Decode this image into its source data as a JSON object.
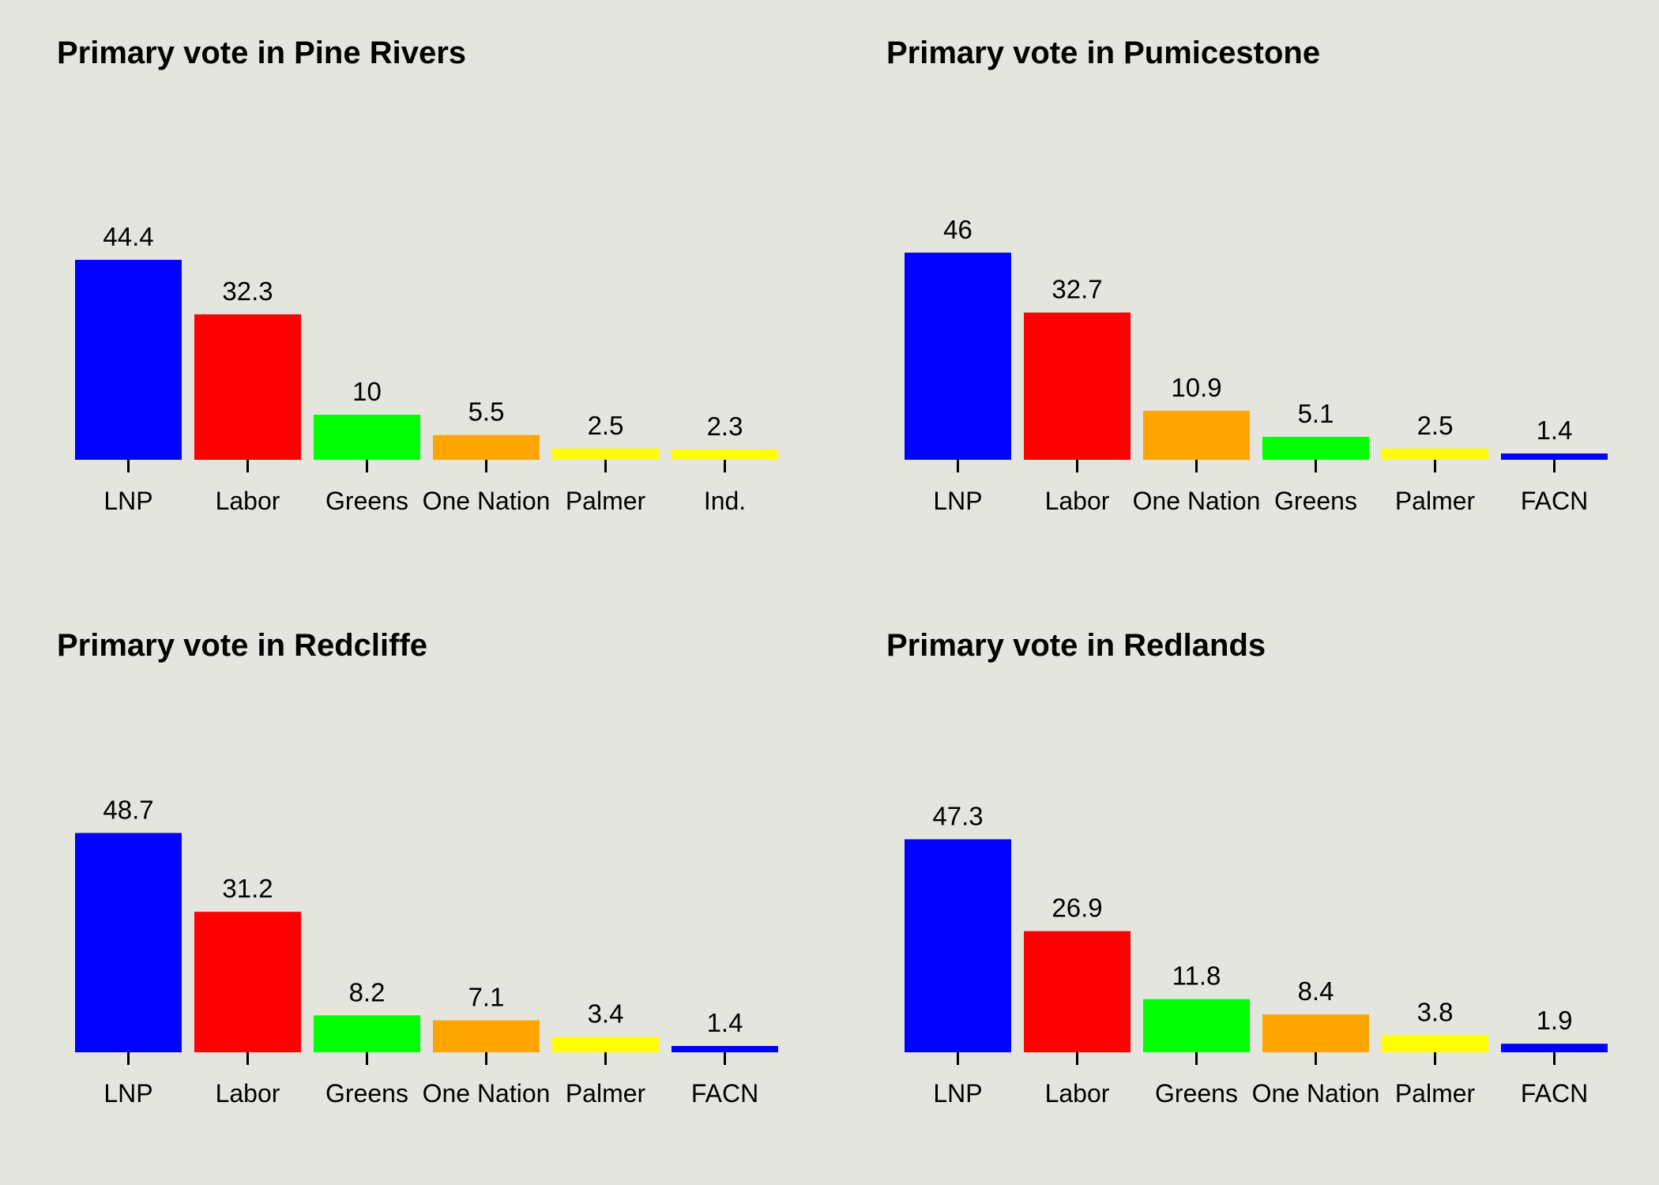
{
  "background": "#E5E5DF",
  "chart_data": [
    {
      "type": "bar",
      "title": "Primary vote in Pine Rivers",
      "categories": [
        "LNP",
        "Labor",
        "Greens",
        "One Nation",
        "Palmer",
        "Ind."
      ],
      "values": [
        44.4,
        32.3,
        10,
        5.5,
        2.5,
        2.3
      ],
      "labels": [
        "44.4",
        "32.3",
        "10",
        "5.5",
        "2.5",
        "2.3"
      ],
      "colors": [
        "#0000FF",
        "#FF0000",
        "#00FF00",
        "#FFA500",
        "#FFFF00",
        "#FFFF00"
      ],
      "ylim": [
        0,
        60
      ],
      "grid": false,
      "legend": "none"
    },
    {
      "type": "bar",
      "title": "Primary vote in Pumicestone",
      "categories": [
        "LNP",
        "Labor",
        "One Nation",
        "Greens",
        "Palmer",
        "FACN"
      ],
      "values": [
        46,
        32.7,
        10.9,
        5.1,
        2.5,
        1.4
      ],
      "labels": [
        "46",
        "32.7",
        "10.9",
        "5.1",
        "2.5",
        "1.4"
      ],
      "colors": [
        "#0000FF",
        "#FF0000",
        "#FFA500",
        "#00FF00",
        "#FFFF00",
        "#0000FF"
      ],
      "ylim": [
        0,
        60
      ],
      "grid": false,
      "legend": "none"
    },
    {
      "type": "bar",
      "title": "Primary vote in Redcliffe",
      "categories": [
        "LNP",
        "Labor",
        "Greens",
        "One Nation",
        "Palmer",
        "FACN"
      ],
      "values": [
        48.7,
        31.2,
        8.2,
        7.1,
        3.4,
        1.4
      ],
      "labels": [
        "48.7",
        "31.2",
        "8.2",
        "7.1",
        "3.4",
        "1.4"
      ],
      "colors": [
        "#0000FF",
        "#FF0000",
        "#00FF00",
        "#FFA500",
        "#FFFF00",
        "#0000FF"
      ],
      "ylim": [
        0,
        60
      ],
      "grid": false,
      "legend": "none"
    },
    {
      "type": "bar",
      "title": "Primary vote in Redlands",
      "categories": [
        "LNP",
        "Labor",
        "Greens",
        "One Nation",
        "Palmer",
        "FACN"
      ],
      "values": [
        47.3,
        26.9,
        11.8,
        8.4,
        3.8,
        1.9
      ],
      "labels": [
        "47.3",
        "26.9",
        "11.8",
        "8.4",
        "3.8",
        "1.9"
      ],
      "colors": [
        "#0000FF",
        "#FF0000",
        "#00FF00",
        "#FFA500",
        "#FFFF00",
        "#0000FF"
      ],
      "ylim": [
        0,
        60
      ],
      "grid": false,
      "legend": "none"
    }
  ]
}
